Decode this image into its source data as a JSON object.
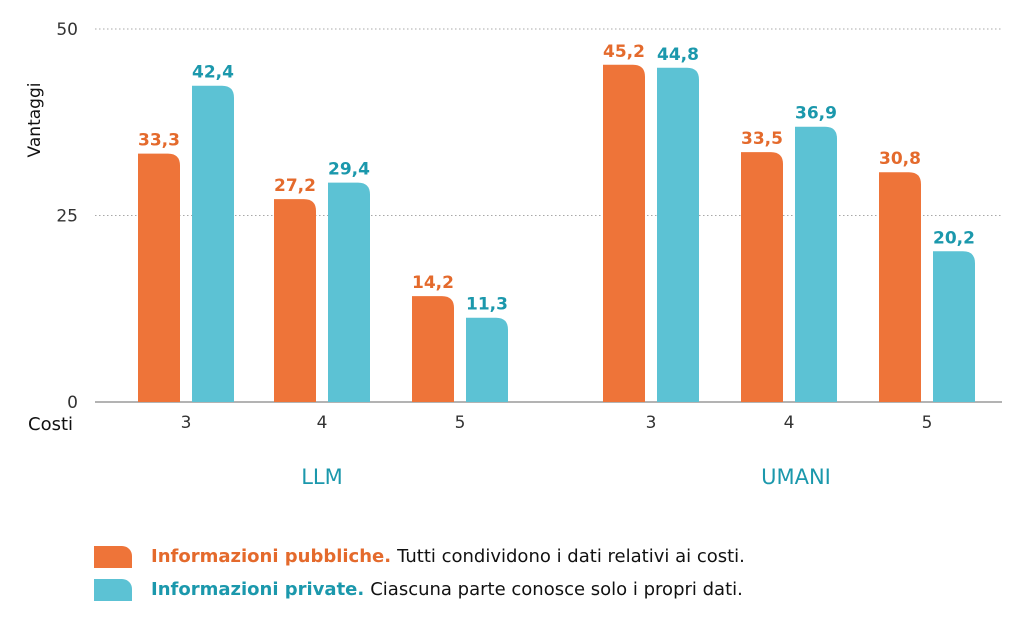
{
  "chart_data": {
    "type": "bar",
    "ylabel": "Vantaggi",
    "xlabel": "Costi",
    "ylim": [
      0,
      50
    ],
    "yticks": [
      0,
      25,
      50
    ],
    "grid": true,
    "legend_position": "bottom-left",
    "groups": [
      {
        "label": "LLM",
        "categories": [
          "3",
          "4",
          "5"
        ],
        "series": [
          {
            "values": [
              33.3,
              27.2,
              14.2
            ],
            "labels": [
              "33,3",
              "27,2",
              "14,2"
            ]
          },
          {
            "values": [
              42.4,
              29.4,
              11.3
            ],
            "labels": [
              "42,4",
              "29,4",
              "11,3"
            ]
          }
        ]
      },
      {
        "label": "UMANI",
        "categories": [
          "3",
          "4",
          "5"
        ],
        "series": [
          {
            "values": [
              45.2,
              33.5,
              30.8
            ],
            "labels": [
              "45,2",
              "33,5",
              "30,8"
            ]
          },
          {
            "values": [
              44.8,
              36.9,
              20.2
            ],
            "labels": [
              "44,8",
              "36,9",
              "20,2"
            ]
          }
        ]
      }
    ],
    "colors": [
      "#ee7439",
      "#5cc2d4"
    ],
    "label_colors": [
      "#e46a2c",
      "#1b98ac"
    ]
  },
  "legend": [
    {
      "title": "Informazioni pubbliche.",
      "text": "Tutti condividono i dati relativi ai costi."
    },
    {
      "title": "Informazioni private.",
      "text": "Ciascuna parte conosce solo i propri dati."
    }
  ]
}
